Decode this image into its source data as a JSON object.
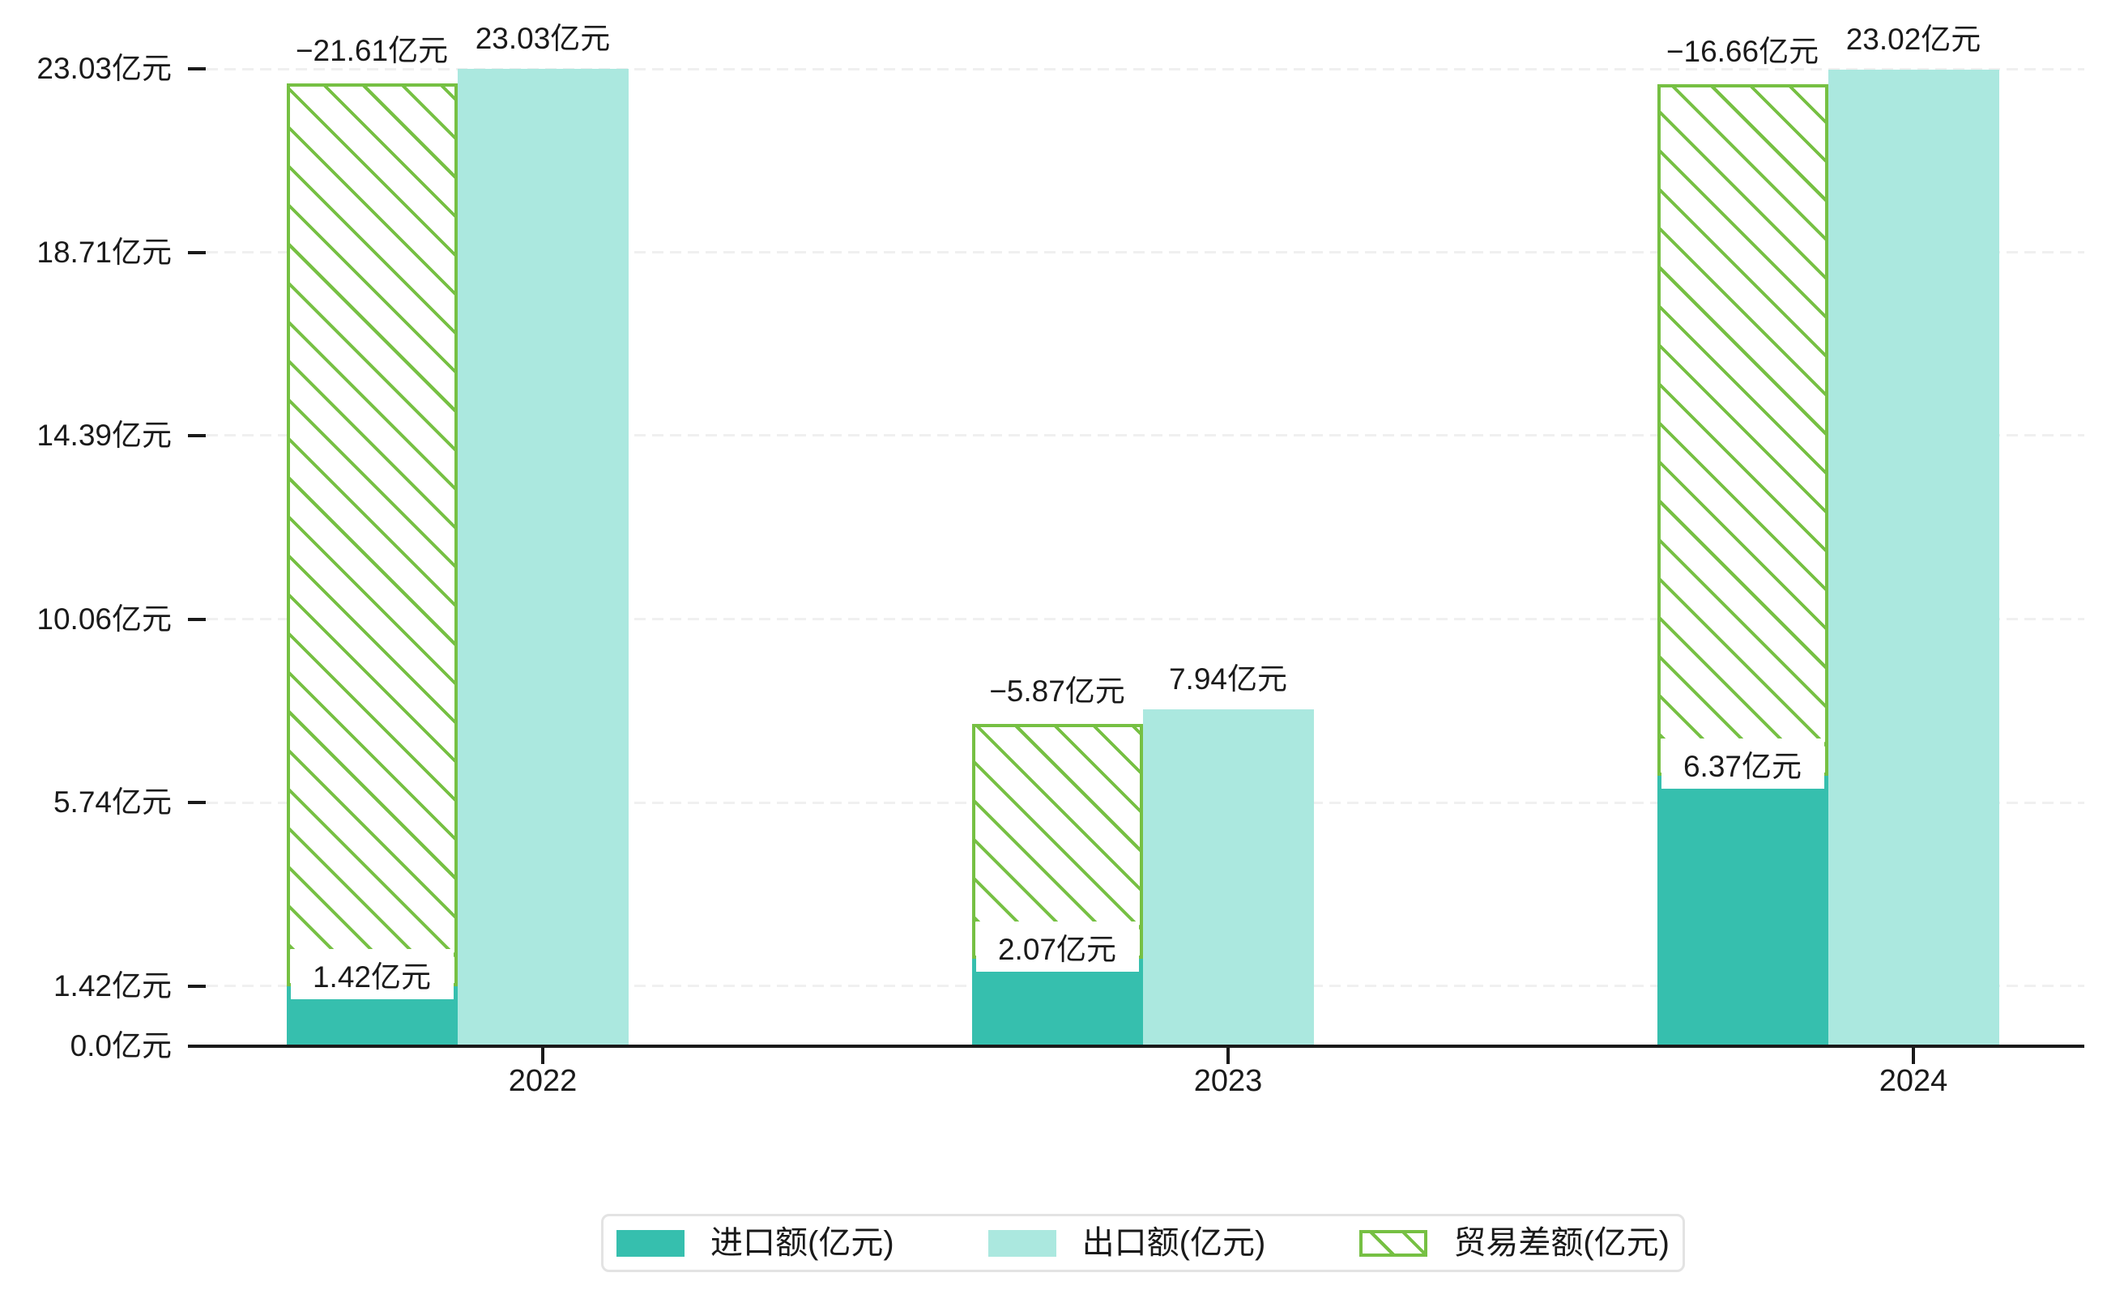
{
  "chart_data": {
    "type": "bar",
    "title": "",
    "categories": [
      "2022",
      "2023",
      "2024"
    ],
    "series": [
      {
        "name": "进口额(亿元)",
        "role": "import",
        "color": "#36bfae",
        "values": [
          1.42,
          2.07,
          6.37
        ],
        "labels": [
          "1.42亿元",
          "2.07亿元",
          "6.37亿元"
        ]
      },
      {
        "name": "出口额(亿元)",
        "role": "export",
        "color": "#abe8df",
        "values": [
          23.03,
          7.94,
          23.02
        ],
        "labels": [
          "23.03亿元",
          "7.94亿元",
          "23.02亿元"
        ]
      },
      {
        "name": "贸易差额(亿元)",
        "role": "trade-balance",
        "color": "#76c043",
        "hatch": "diagonal",
        "values": [
          -21.61,
          -5.87,
          -16.66
        ],
        "labels": [
          "−21.61亿元",
          "−5.87亿元",
          "−16.66亿元"
        ]
      }
    ],
    "y_ticks": [
      {
        "value": 0.0,
        "label": "0.0亿元"
      },
      {
        "value": 1.42,
        "label": "1.42亿元"
      },
      {
        "value": 5.74,
        "label": "5.74亿元"
      },
      {
        "value": 10.06,
        "label": "10.06亿元"
      },
      {
        "value": 14.39,
        "label": "14.39亿元"
      },
      {
        "value": 18.71,
        "label": "18.71亿元"
      },
      {
        "value": 23.03,
        "label": "23.03亿元"
      }
    ],
    "ylim": [
      0,
      23.03
    ],
    "xlabel": "",
    "ylabel": "",
    "grid": "horizontal-dashed",
    "legend_position": "bottom",
    "colors": {
      "import_bar": "#36bfae",
      "export_bar": "#abe8df",
      "balance_hatch": "#76c043",
      "axis": "#1a1a1a",
      "gridline": "#f0f0f0",
      "legend_border": "#e3e3e3",
      "background": "#ffffff"
    }
  }
}
